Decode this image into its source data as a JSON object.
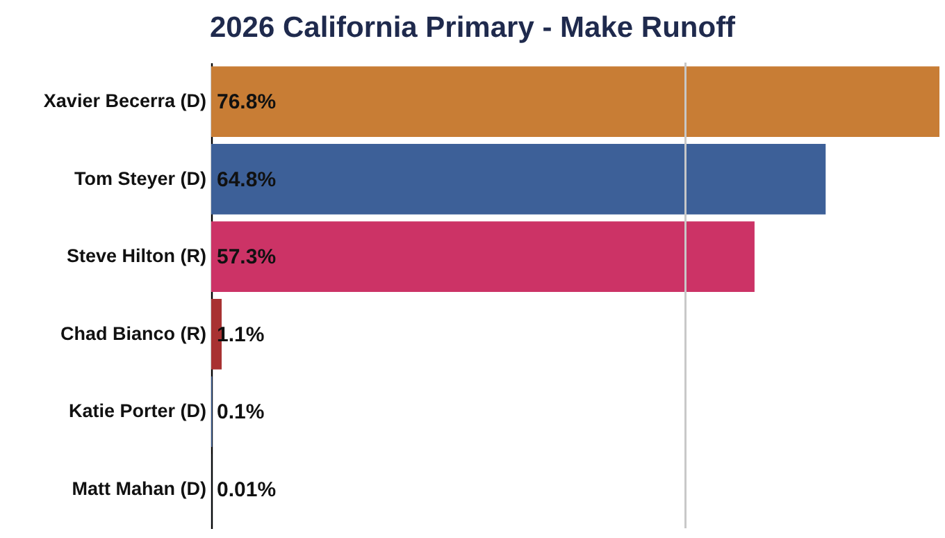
{
  "chart_data": {
    "type": "bar",
    "orientation": "horizontal",
    "title": "2026 California Primary - Make Runoff",
    "categories": [
      "Xavier Becerra (D)",
      "Tom Steyer (D)",
      "Steve Hilton (R)",
      "Chad Bianco (R)",
      "Katie Porter (D)",
      "Matt Mahan (D)"
    ],
    "values": [
      76.8,
      64.8,
      57.3,
      1.1,
      0.1,
      0.01
    ],
    "colors": [
      "#c87d35",
      "#3d6098",
      "#cc3366",
      "#a83232",
      "#3d6098",
      "#3d6098"
    ],
    "value_labels": [
      "76.8%",
      "64.8%",
      "57.3%",
      "1.1%",
      "0.1%",
      "0.01%"
    ],
    "xlim": [
      0,
      76.8
    ],
    "ref_lines": [
      {
        "axis": "x",
        "value": 50,
        "color": "#c8c8c8"
      }
    ],
    "tick_labels": "y"
  }
}
